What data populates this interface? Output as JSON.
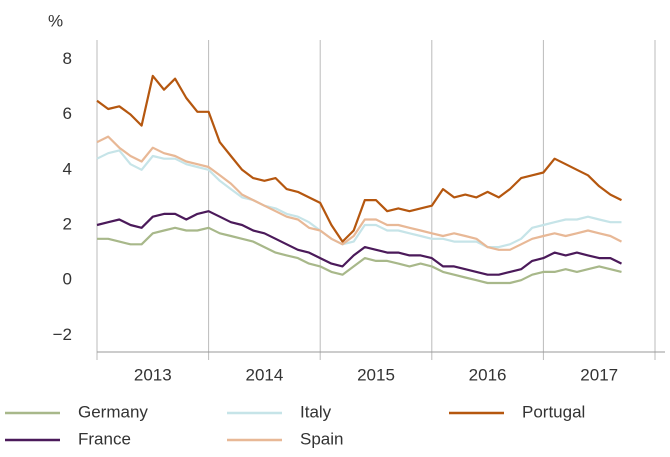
{
  "chart_data": {
    "type": "line",
    "ylabel": "%",
    "xlim": [
      2013,
      2018
    ],
    "xgrid": [
      2013,
      2014,
      2015,
      2016,
      2017,
      2018
    ],
    "xticks": [
      {
        "value": 2013.5,
        "label": "2013"
      },
      {
        "value": 2014.5,
        "label": "2014"
      },
      {
        "value": 2015.5,
        "label": "2015"
      },
      {
        "value": 2016.5,
        "label": "2016"
      },
      {
        "value": 2017.5,
        "label": "2017"
      }
    ],
    "ylim": [
      -2.6,
      8.7
    ],
    "yticks": [
      {
        "value": -2,
        "label": "−2"
      },
      0,
      2,
      4,
      6,
      8
    ],
    "x": [
      2013.0,
      2013.1,
      2013.2,
      2013.3,
      2013.4,
      2013.5,
      2013.6,
      2013.7,
      2013.8,
      2013.9,
      2014.0,
      2014.1,
      2014.2,
      2014.3,
      2014.4,
      2014.5,
      2014.6,
      2014.7,
      2014.8,
      2014.9,
      2015.0,
      2015.1,
      2015.2,
      2015.3,
      2015.4,
      2015.5,
      2015.6,
      2015.7,
      2015.8,
      2015.9,
      2016.0,
      2016.1,
      2016.2,
      2016.3,
      2016.4,
      2016.5,
      2016.6,
      2016.7,
      2016.8,
      2016.9,
      2017.0,
      2017.1,
      2017.2,
      2017.3,
      2017.4,
      2017.5,
      2017.6,
      2017.7
    ],
    "series": [
      {
        "name": "Germany",
        "color": "#a8b88a",
        "values": [
          1.5,
          1.5,
          1.4,
          1.3,
          1.3,
          1.7,
          1.8,
          1.9,
          1.8,
          1.8,
          1.9,
          1.7,
          1.6,
          1.5,
          1.4,
          1.2,
          1.0,
          0.9,
          0.8,
          0.6,
          0.5,
          0.3,
          0.2,
          0.5,
          0.8,
          0.7,
          0.7,
          0.6,
          0.5,
          0.6,
          0.5,
          0.3,
          0.2,
          0.1,
          0.0,
          -0.1,
          -0.1,
          -0.1,
          0.0,
          0.2,
          0.3,
          0.3,
          0.4,
          0.3,
          0.4,
          0.5,
          0.4,
          0.3
        ]
      },
      {
        "name": "France",
        "color": "#4b1a5a",
        "values": [
          2.0,
          2.1,
          2.2,
          2.0,
          1.9,
          2.3,
          2.4,
          2.4,
          2.2,
          2.4,
          2.5,
          2.3,
          2.1,
          2.0,
          1.8,
          1.7,
          1.5,
          1.3,
          1.1,
          1.0,
          0.8,
          0.6,
          0.5,
          0.9,
          1.2,
          1.1,
          1.0,
          1.0,
          0.9,
          0.9,
          0.8,
          0.5,
          0.5,
          0.4,
          0.3,
          0.2,
          0.2,
          0.3,
          0.4,
          0.7,
          0.8,
          1.0,
          0.9,
          1.0,
          0.9,
          0.8,
          0.8,
          0.6
        ]
      },
      {
        "name": "Italy",
        "color": "#c6e4e8",
        "values": [
          4.4,
          4.6,
          4.7,
          4.2,
          4.0,
          4.5,
          4.4,
          4.4,
          4.2,
          4.1,
          4.0,
          3.6,
          3.3,
          3.0,
          2.9,
          2.7,
          2.6,
          2.4,
          2.3,
          2.1,
          1.8,
          1.5,
          1.3,
          1.4,
          2.0,
          2.0,
          1.8,
          1.8,
          1.7,
          1.6,
          1.5,
          1.5,
          1.4,
          1.4,
          1.4,
          1.2,
          1.2,
          1.3,
          1.5,
          1.9,
          2.0,
          2.1,
          2.2,
          2.2,
          2.3,
          2.2,
          2.1,
          2.1
        ]
      },
      {
        "name": "Spain",
        "color": "#e8b896",
        "values": [
          5.0,
          5.2,
          4.8,
          4.5,
          4.3,
          4.8,
          4.6,
          4.5,
          4.3,
          4.2,
          4.1,
          3.8,
          3.5,
          3.1,
          2.9,
          2.7,
          2.5,
          2.3,
          2.2,
          1.9,
          1.8,
          1.5,
          1.3,
          1.6,
          2.2,
          2.2,
          2.0,
          2.0,
          1.9,
          1.8,
          1.7,
          1.6,
          1.7,
          1.6,
          1.5,
          1.2,
          1.1,
          1.1,
          1.3,
          1.5,
          1.6,
          1.7,
          1.6,
          1.7,
          1.8,
          1.7,
          1.6,
          1.4
        ]
      },
      {
        "name": "Portugal",
        "color": "#b5570f",
        "values": [
          6.5,
          6.2,
          6.3,
          6.0,
          5.6,
          7.4,
          6.9,
          7.3,
          6.6,
          6.1,
          6.1,
          5.0,
          4.5,
          4.0,
          3.7,
          3.6,
          3.7,
          3.3,
          3.2,
          3.0,
          2.8,
          2.0,
          1.4,
          1.8,
          2.9,
          2.9,
          2.5,
          2.6,
          2.5,
          2.6,
          2.7,
          3.3,
          3.0,
          3.1,
          3.0,
          3.2,
          3.0,
          3.3,
          3.7,
          3.8,
          3.9,
          4.4,
          4.2,
          4.0,
          3.8,
          3.4,
          3.1,
          2.9
        ]
      }
    ]
  }
}
